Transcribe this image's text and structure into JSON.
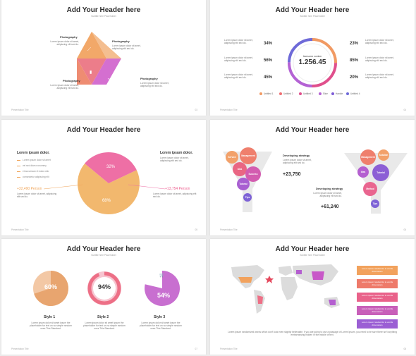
{
  "common": {
    "header": "Add Your Header here",
    "subtitle": "Subtitle here Placeholder",
    "footer": "Presentation Title",
    "lorem_small": "Lorem ipsum dolor sit amet, adipiscing elit sed do."
  },
  "slide1": {
    "labels": [
      "Photography",
      "Photography",
      "Photography",
      "Photography"
    ],
    "page": "03"
  },
  "slide2": {
    "center_label": "Awesome number",
    "center_value": "1.256.45",
    "percents": [
      "34%",
      "56%",
      "45%",
      "23%",
      "85%",
      "20%"
    ],
    "legend": [
      "Untitled 1",
      "Untitled 2",
      "Untitled 3",
      "Slice",
      "Handle",
      "Untitled 4"
    ],
    "legend_colors": [
      "#f19a63",
      "#ef6f73",
      "#e04f8c",
      "#b462d4",
      "#7e5cd6",
      "#6e6ad8"
    ],
    "page": "04"
  },
  "slide3": {
    "left_title": "Lorem ipsum dolor.",
    "bullets": [
      "Lorem ipsum dolor sit amet",
      "vel sed diam nonummy",
      "et accumsan et iusto odio",
      "consectetur adipiscing elit"
    ],
    "left_value": "+32,490 Person",
    "right_title": "Lorem ipsum dolor.",
    "right_value": "+13,754 Person",
    "chart_data": {
      "type": "pie",
      "categories": [
        "",
        ""
      ],
      "values": [
        68,
        32
      ],
      "labels": [
        "68%",
        "32%"
      ],
      "colors": [
        "#f2b86e",
        "#ee6fa5"
      ]
    },
    "page": "05"
  },
  "slide4": {
    "left_funnel": [
      "Service",
      "Management",
      "Idea",
      "Success",
      "Tutorial",
      "Tips"
    ],
    "right_funnel": [
      "Management",
      "Solution",
      "Idea",
      "Tutorial",
      "Method",
      "Tips"
    ],
    "item1_title": "Developing strategy",
    "item1_value": "+23,750",
    "item2_title": "Developing strategy",
    "item2_value": "+61,240",
    "page": "06"
  },
  "slide5": {
    "values": [
      "60%",
      "94%",
      "54%"
    ],
    "styles": [
      "Style 1",
      "Style 2",
      "Style 3"
    ],
    "desc": "Lorem ipsum dolor sit amet ipsum the placeholder for text on no simple random ones This Standard.",
    "page": "07"
  },
  "slide6": {
    "bars": [
      "Lorem ipsum randomize to words dimensions",
      "Lorem ipsum randomize to words dimensions",
      "Lorem ipsum randomize to words dimensions",
      "Lorem ipsum randomize to words dimensions",
      "Lorem ipsum randomize to words dimensions"
    ],
    "bar_colors": [
      "#f2a25d",
      "#ee7a6a",
      "#e9628a",
      "#c85fb9",
      "#9b5fd4"
    ],
    "caption": "Lorem ipsum randomized words which don't look even slightly believable. If you are going to use a passage of Lorem Ipsum, you need to be sure there isn't anything embarrassing hidden in the middle of text.",
    "page": "08"
  }
}
